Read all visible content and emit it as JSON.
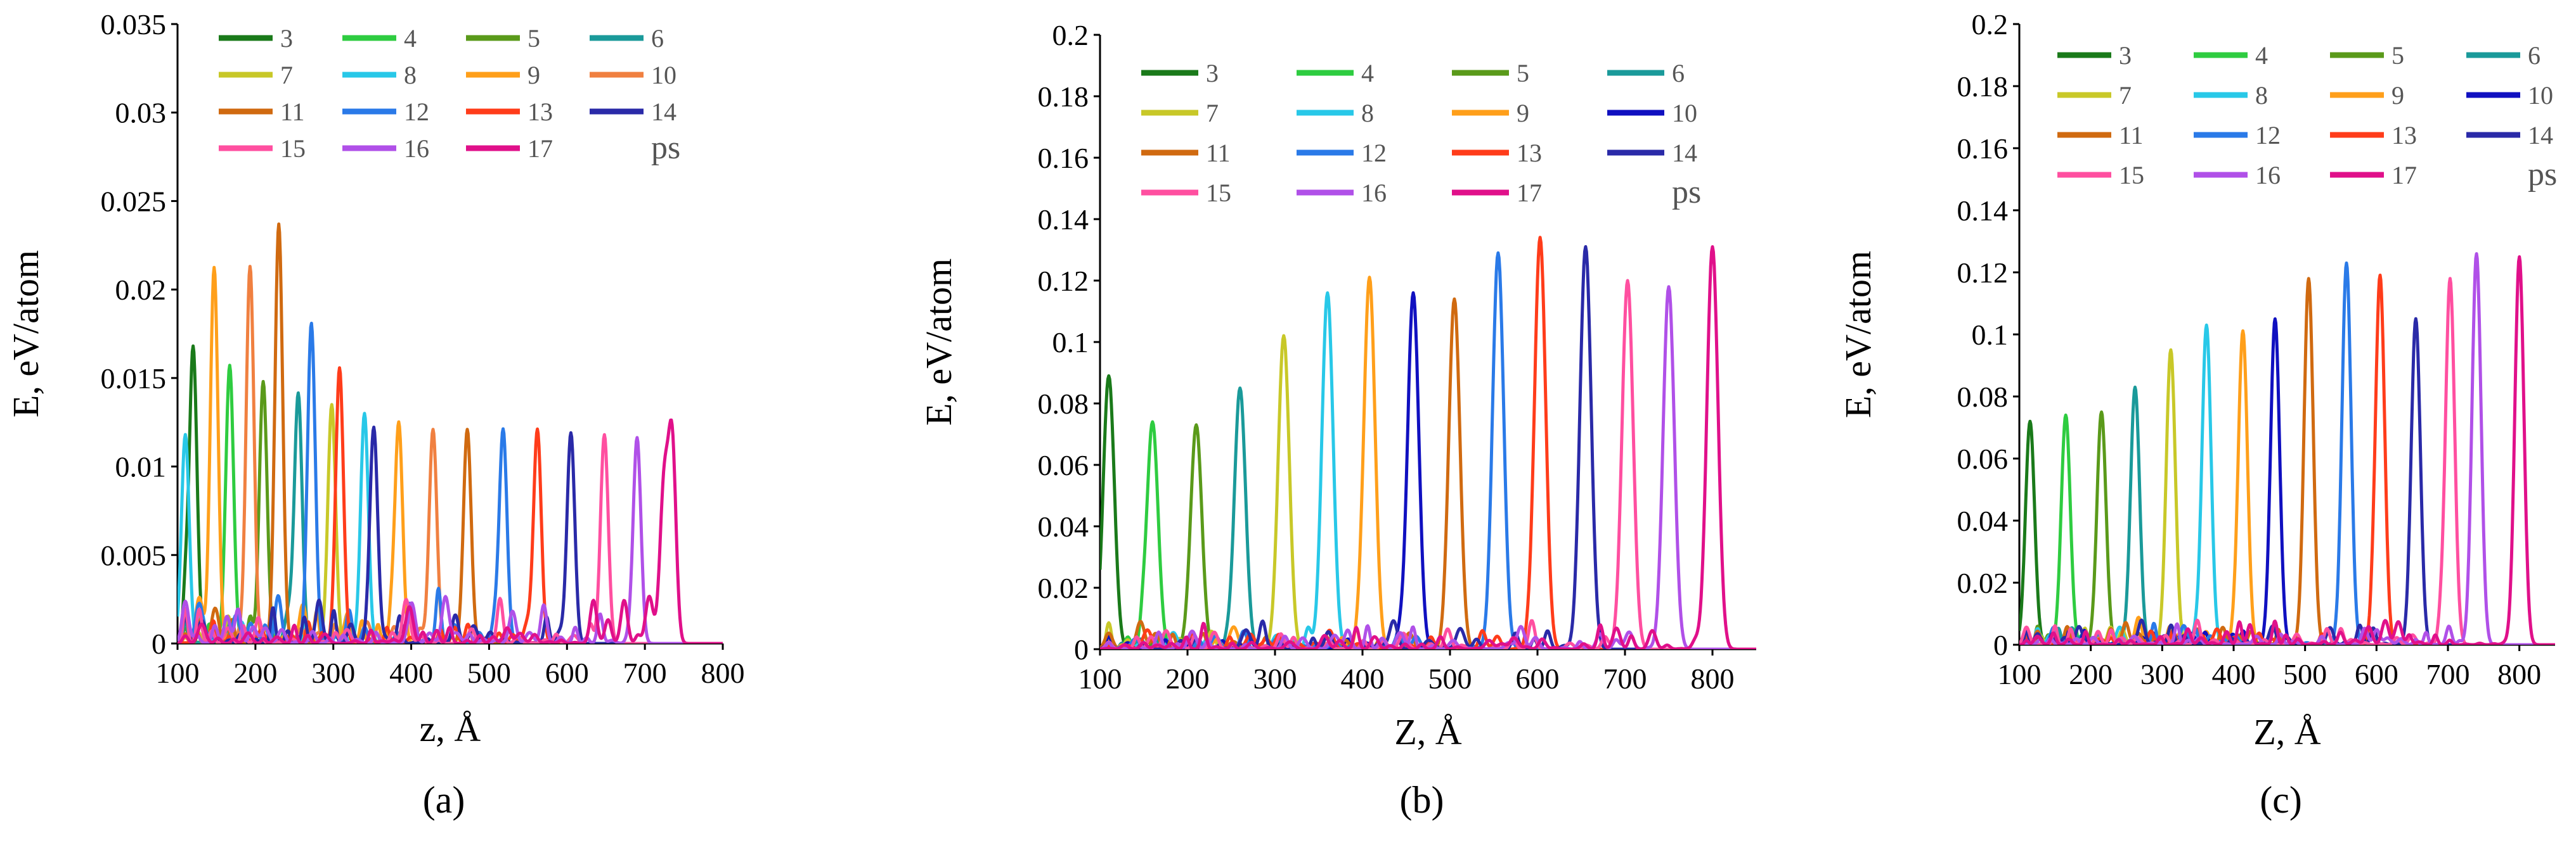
{
  "figure": {
    "legend_unit": "ps"
  },
  "series_colors": {
    "3": "#1a7a1a",
    "4": "#2ecc40",
    "5": "#5a9a1a",
    "6": "#1a9a9a",
    "7": "#c8c828",
    "8": "#28c8e8",
    "9": "#ff9f1a",
    "10_a": "#f08040",
    "10_bc": "#1010c0",
    "11": "#d06a10",
    "12": "#2a7ae8",
    "13": "#ff3c1a",
    "14": "#2a2aa8",
    "15": "#ff4fa0",
    "16": "#b050e8",
    "17": "#e0108a"
  },
  "chart_data": [
    {
      "id": "a",
      "type": "line",
      "panel_label": "(a)",
      "title": "",
      "xlabel": "z, Å",
      "ylabel": "E, eV/atom",
      "xlim": [
        100,
        800
      ],
      "ylim": [
        0,
        0.035
      ],
      "xticks": [
        "100",
        "200",
        "300",
        "400",
        "500",
        "600",
        "700",
        "800"
      ],
      "yticks": [
        "0",
        "0.005",
        "0.01",
        "0.015",
        "0.02",
        "0.025",
        "0.03",
        "0.035"
      ],
      "legend_position": "top",
      "series": [
        {
          "name": "3",
          "peak_z": 120,
          "peak_e": 0.0168
        },
        {
          "name": "4",
          "peak_z": 167,
          "peak_e": 0.0157
        },
        {
          "name": "5",
          "peak_z": 210,
          "peak_e": 0.0148
        },
        {
          "name": "6",
          "peak_z": 255,
          "peak_e": 0.0141
        },
        {
          "name": "7",
          "peak_z": 298,
          "peak_e": 0.0135
        },
        {
          "name": "8",
          "peak_z": 340,
          "peak_e": 0.013
        },
        {
          "name": "9",
          "peak_z": 384,
          "peak_e": 0.0125
        },
        {
          "name": "10",
          "peak_z": 428,
          "peak_e": 0.0121
        },
        {
          "name": "11",
          "peak_z": 230,
          "peak_e": 0.0237
        },
        {
          "name": "12",
          "peak_z": 518,
          "peak_e": 0.0121
        },
        {
          "name": "13",
          "peak_z": 562,
          "peak_e": 0.0121
        },
        {
          "name": "14",
          "peak_z": 605,
          "peak_e": 0.0119
        },
        {
          "name": "15",
          "peak_z": 648,
          "peak_e": 0.0118
        },
        {
          "name": "16",
          "peak_z": 690,
          "peak_e": 0.0116
        },
        {
          "name": "17",
          "peak_z": 735,
          "peak_e": 0.0113
        }
      ],
      "secondary_peaks": [
        {
          "name": "9",
          "z": 147,
          "e": 0.0212
        },
        {
          "name": "10",
          "z": 193,
          "e": 0.0211
        },
        {
          "name": "12",
          "z": 272,
          "e": 0.0167
        },
        {
          "name": "13",
          "z": 308,
          "e": 0.0149
        },
        {
          "name": "14",
          "z": 352,
          "e": 0.0121
        },
        {
          "name": "11",
          "z": 472,
          "e": 0.0121
        },
        {
          "name": "8",
          "z": 110,
          "e": 0.0117
        },
        {
          "name": "17",
          "z": 725,
          "e": 0.008
        }
      ]
    },
    {
      "id": "b",
      "type": "line",
      "panel_label": "(b)",
      "title": "",
      "xlabel": "Z, Å",
      "ylabel": "E, eV/atom",
      "xlim": [
        100,
        850
      ],
      "ylim": [
        0,
        0.2
      ],
      "xticks": [
        "100",
        "200",
        "300",
        "400",
        "500",
        "600",
        "700",
        "800"
      ],
      "yticks": [
        "0",
        "0.02",
        "0.04",
        "0.06",
        "0.08",
        "0.1",
        "0.12",
        "0.14",
        "0.16",
        "0.18",
        "0.2"
      ],
      "legend_position": "top",
      "series": [
        {
          "name": "3",
          "peak_z": 110,
          "peak_e": 0.089
        },
        {
          "name": "4",
          "peak_z": 160,
          "peak_e": 0.074
        },
        {
          "name": "5",
          "peak_z": 210,
          "peak_e": 0.073
        },
        {
          "name": "6",
          "peak_z": 260,
          "peak_e": 0.085
        },
        {
          "name": "7",
          "peak_z": 310,
          "peak_e": 0.102
        },
        {
          "name": "8",
          "peak_z": 360,
          "peak_e": 0.116
        },
        {
          "name": "9",
          "peak_z": 408,
          "peak_e": 0.121
        },
        {
          "name": "10",
          "peak_z": 458,
          "peak_e": 0.116
        },
        {
          "name": "11",
          "peak_z": 505,
          "peak_e": 0.114
        },
        {
          "name": "12",
          "peak_z": 555,
          "peak_e": 0.129
        },
        {
          "name": "13",
          "peak_z": 603,
          "peak_e": 0.134
        },
        {
          "name": "14",
          "peak_z": 655,
          "peak_e": 0.131
        },
        {
          "name": "15",
          "peak_z": 703,
          "peak_e": 0.12
        },
        {
          "name": "16",
          "peak_z": 750,
          "peak_e": 0.118
        },
        {
          "name": "17",
          "peak_z": 800,
          "peak_e": 0.131
        }
      ],
      "secondary_peaks": []
    },
    {
      "id": "c",
      "type": "line",
      "panel_label": "(c)",
      "title": "",
      "xlabel": "Z, Å",
      "ylabel": "E, eV/atom",
      "xlim": [
        100,
        850
      ],
      "ylim": [
        0,
        0.2
      ],
      "xticks": [
        "100",
        "200",
        "300",
        "400",
        "500",
        "600",
        "700",
        "800"
      ],
      "yticks": [
        "0",
        "0.02",
        "0.04",
        "0.06",
        "0.08",
        "0.1",
        "0.12",
        "0.14",
        "0.16",
        "0.18",
        "0.2"
      ],
      "legend_position": "top",
      "series": [
        {
          "name": "3",
          "peak_z": 115,
          "peak_e": 0.072
        },
        {
          "name": "4",
          "peak_z": 165,
          "peak_e": 0.074
        },
        {
          "name": "5",
          "peak_z": 215,
          "peak_e": 0.075
        },
        {
          "name": "6",
          "peak_z": 262,
          "peak_e": 0.083
        },
        {
          "name": "7",
          "peak_z": 312,
          "peak_e": 0.095
        },
        {
          "name": "8",
          "peak_z": 362,
          "peak_e": 0.103
        },
        {
          "name": "9",
          "peak_z": 413,
          "peak_e": 0.101
        },
        {
          "name": "10",
          "peak_z": 458,
          "peak_e": 0.105
        },
        {
          "name": "11",
          "peak_z": 505,
          "peak_e": 0.118
        },
        {
          "name": "12",
          "peak_z": 558,
          "peak_e": 0.123
        },
        {
          "name": "13",
          "peak_z": 605,
          "peak_e": 0.119
        },
        {
          "name": "14",
          "peak_z": 655,
          "peak_e": 0.105
        },
        {
          "name": "15",
          "peak_z": 703,
          "peak_e": 0.118
        },
        {
          "name": "16",
          "peak_z": 740,
          "peak_e": 0.126
        },
        {
          "name": "17",
          "peak_z": 800,
          "peak_e": 0.125
        }
      ],
      "secondary_peaks": []
    }
  ]
}
